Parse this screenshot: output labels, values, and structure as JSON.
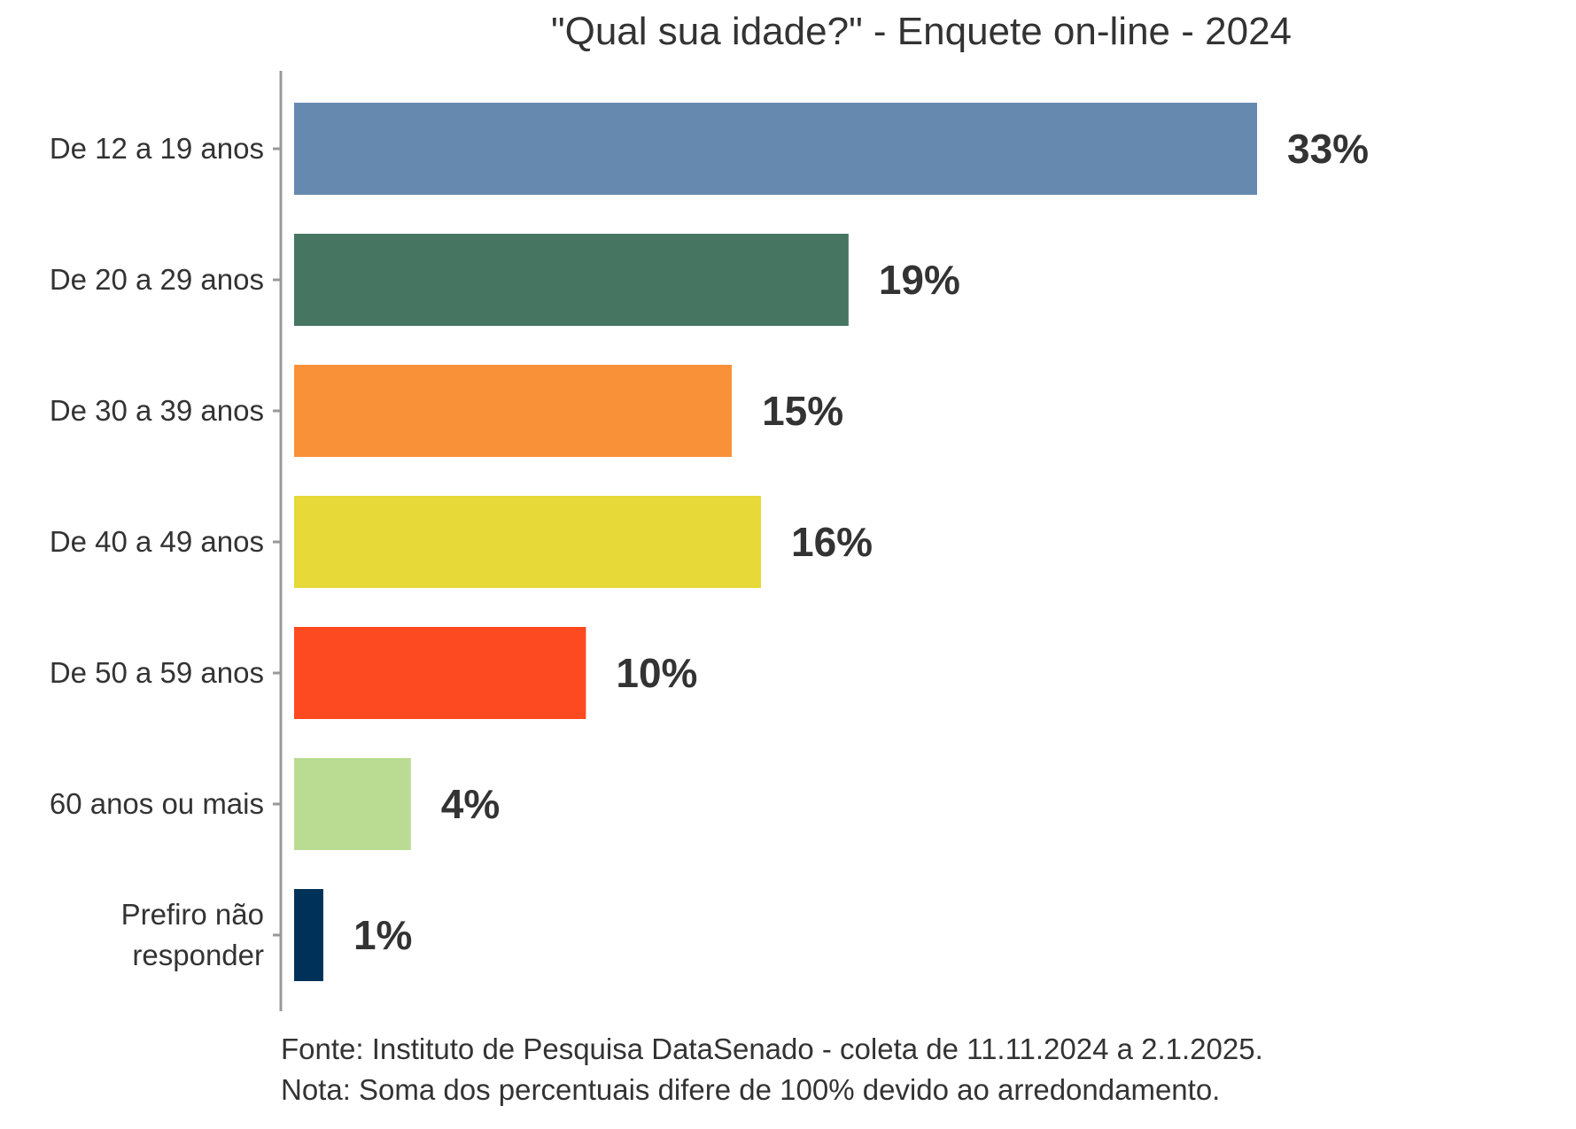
{
  "chart_data": {
    "type": "bar",
    "orientation": "horizontal",
    "title": "\"Qual sua idade?\" - Enquete on-line - 2024",
    "categories": [
      "De 12 a 19 anos",
      "De 20 a 29 anos",
      "De 30 a 39 anos",
      "De 40 a 49 anos",
      "De 50 a 59 anos",
      "60 anos ou mais",
      "Prefiro não responder"
    ],
    "values": [
      33,
      19,
      15,
      16,
      10,
      4,
      1
    ],
    "value_labels": [
      "33%",
      "19%",
      "15%",
      "16%",
      "10%",
      "4%",
      "1%"
    ],
    "colors": [
      "#6689b0",
      "#467562",
      "#f99139",
      "#e6d938",
      "#fe4a21",
      "#badc92",
      "#003259"
    ],
    "xlim": [
      0,
      33
    ],
    "grid": false,
    "legend": "none"
  },
  "footnotes": {
    "source": "Fonte: Instituto de Pesquisa DataSenado - coleta de 11.11.2024 a 2.1.2025.",
    "note": "Nota: Soma dos percentuais difere de 100% devido ao arredondamento."
  }
}
